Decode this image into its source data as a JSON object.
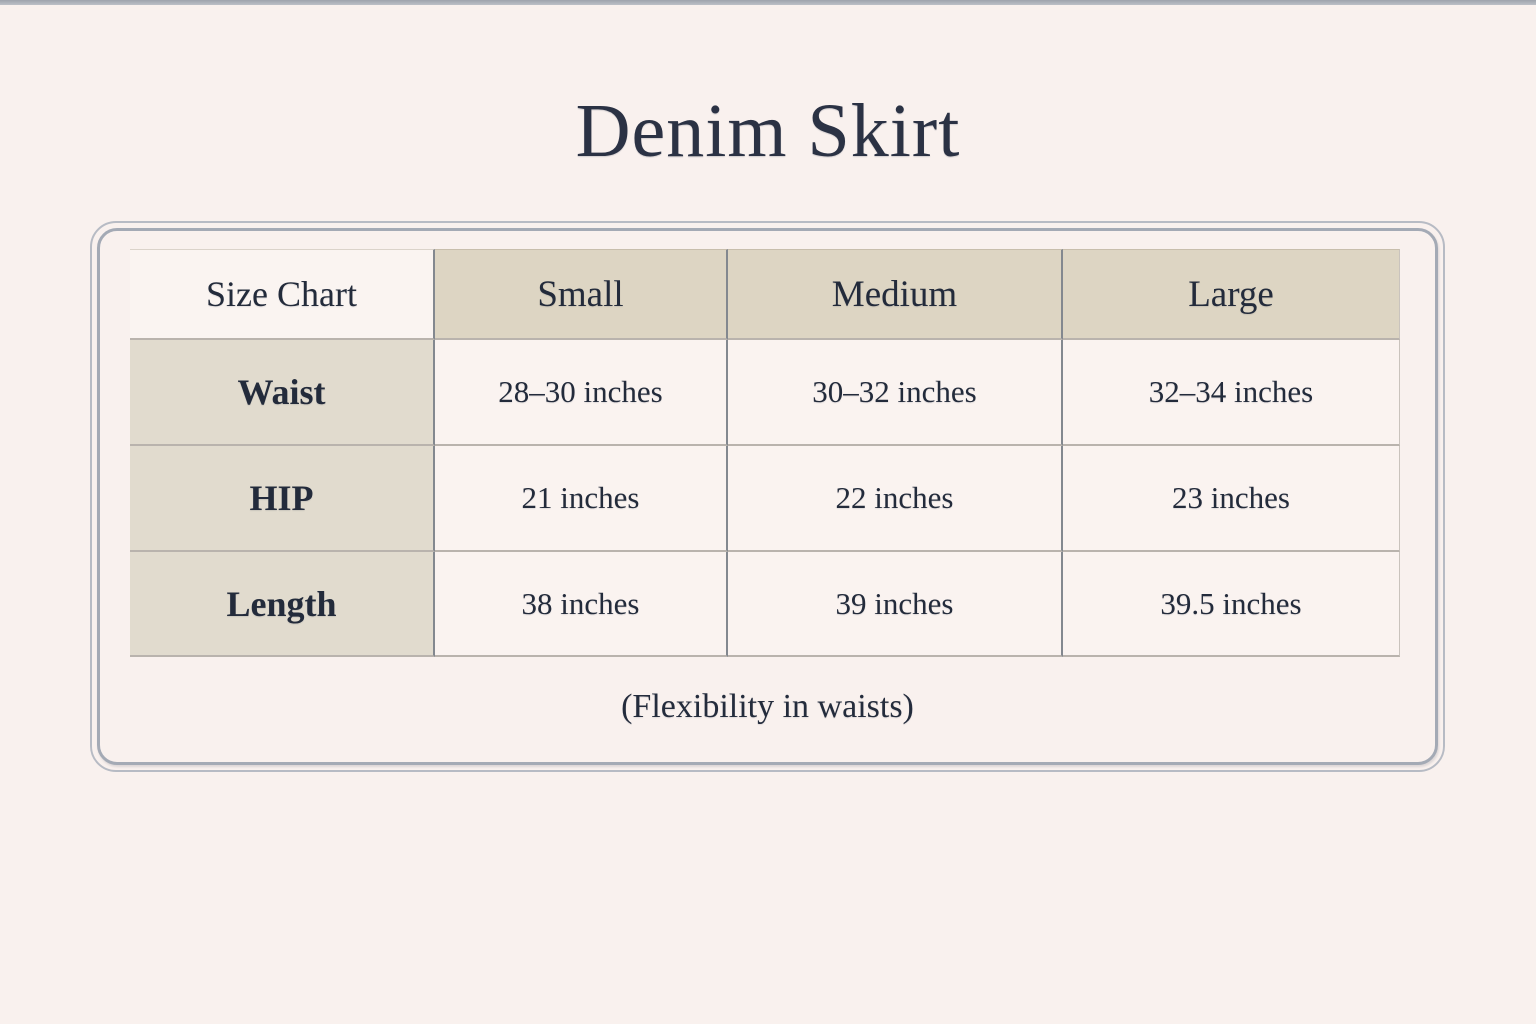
{
  "page": {
    "title": "Denim Skirt",
    "footnote": "(Flexibility in waists)"
  },
  "size_chart": {
    "corner_label": "Size Chart",
    "columns": [
      "Small",
      "Medium",
      "Large"
    ],
    "rows": [
      {
        "label": "Waist",
        "values": [
          "28–30 inches",
          "30–32 inches",
          "32–34 inches"
        ]
      },
      {
        "label": "HIP",
        "values": [
          "21 inches",
          "22 inches",
          "23 inches"
        ]
      },
      {
        "label": "Length",
        "values": [
          "38 inches",
          "39 inches",
          "39.5 inches"
        ]
      }
    ]
  },
  "colors": {
    "page_background": "#f9f1ee",
    "data_cell_background": "#faf3f0",
    "column_header_background": "#ddd5c3",
    "row_label_background": "#e1dbce",
    "frame_border": "#a4aab5",
    "vertical_grid_line": "#83888f",
    "horizontal_grid_line": "#b9b3ad",
    "text_ink": "#232b3b"
  }
}
